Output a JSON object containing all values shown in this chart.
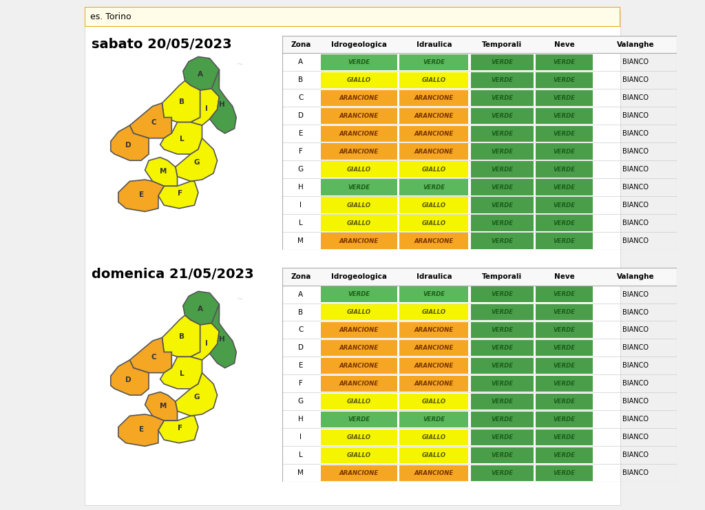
{
  "header_text": "es. Torino",
  "header_bg": "#fffde7",
  "header_border": "#e6a817",
  "title1": "sabato 20/05/2023",
  "title2": "domenica 21/05/2023",
  "columns": [
    "Zona",
    "Idrogeologica",
    "Idraulica",
    "Temporali",
    "Neve",
    "Valanghe"
  ],
  "table1": [
    [
      "A",
      "VERDE",
      "VERDE",
      "VERDE",
      "VERDE",
      "BIANCO"
    ],
    [
      "B",
      "GIALLO",
      "GIALLO",
      "VERDE",
      "VERDE",
      "BIANCO"
    ],
    [
      "C",
      "ARANCIONE",
      "ARANCIONE",
      "VERDE",
      "VERDE",
      "BIANCO"
    ],
    [
      "D",
      "ARANCIONE",
      "ARANCIONE",
      "VERDE",
      "VERDE",
      "BIANCO"
    ],
    [
      "E",
      "ARANCIONE",
      "ARANCIONE",
      "VERDE",
      "VERDE",
      "BIANCO"
    ],
    [
      "F",
      "ARANCIONE",
      "ARANCIONE",
      "VERDE",
      "VERDE",
      "BIANCO"
    ],
    [
      "G",
      "GIALLO",
      "GIALLO",
      "VERDE",
      "VERDE",
      "BIANCO"
    ],
    [
      "H",
      "VERDE",
      "VERDE",
      "VERDE",
      "VERDE",
      "BIANCO"
    ],
    [
      "I",
      "GIALLO",
      "GIALLO",
      "VERDE",
      "VERDE",
      "BIANCO"
    ],
    [
      "L",
      "GIALLO",
      "GIALLO",
      "VERDE",
      "VERDE",
      "BIANCO"
    ],
    [
      "M",
      "ARANCIONE",
      "ARANCIONE",
      "VERDE",
      "VERDE",
      "BIANCO"
    ]
  ],
  "table2": [
    [
      "A",
      "VERDE",
      "VERDE",
      "VERDE",
      "VERDE",
      "BIANCO"
    ],
    [
      "B",
      "GIALLO",
      "GIALLO",
      "VERDE",
      "VERDE",
      "BIANCO"
    ],
    [
      "C",
      "ARANCIONE",
      "ARANCIONE",
      "VERDE",
      "VERDE",
      "BIANCO"
    ],
    [
      "D",
      "ARANCIONE",
      "ARANCIONE",
      "VERDE",
      "VERDE",
      "BIANCO"
    ],
    [
      "E",
      "ARANCIONE",
      "ARANCIONE",
      "VERDE",
      "VERDE",
      "BIANCO"
    ],
    [
      "F",
      "ARANCIONE",
      "ARANCIONE",
      "VERDE",
      "VERDE",
      "BIANCO"
    ],
    [
      "G",
      "GIALLO",
      "GIALLO",
      "VERDE",
      "VERDE",
      "BIANCO"
    ],
    [
      "H",
      "VERDE",
      "VERDE",
      "VERDE",
      "VERDE",
      "BIANCO"
    ],
    [
      "I",
      "GIALLO",
      "GIALLO",
      "VERDE",
      "VERDE",
      "BIANCO"
    ],
    [
      "L",
      "GIALLO",
      "GIALLO",
      "VERDE",
      "VERDE",
      "BIANCO"
    ],
    [
      "M",
      "ARANCIONE",
      "ARANCIONE",
      "VERDE",
      "VERDE",
      "BIANCO"
    ]
  ],
  "color_map": {
    "VERDE": "#5cb85c",
    "GIALLO": "#f5f500",
    "ARANCIONE": "#f5a623",
    "BIANCO": "#ffffff"
  },
  "neve_color": "#4a9e4a",
  "temporali_color": "#4a9e4a",
  "text_color_map": {
    "VERDE": "#1a5e1a",
    "GIALLO": "#5a5a00",
    "ARANCIONE": "#7a3300",
    "BIANCO": "#000000"
  },
  "bg_color": "#ffffff",
  "page_bg": "#f5f5f5",
  "map1_zones_colors": {
    "A": "#4a9e4a",
    "B": "#f5f500",
    "C": "#f5a623",
    "D": "#f5a623",
    "E": "#f5a623",
    "F": "#f5f500",
    "G": "#f5f500",
    "H": "#4a9e4a",
    "I": "#f5f500",
    "L": "#f5f500",
    "M": "#f5f500"
  },
  "map2_zones_colors": {
    "A": "#4a9e4a",
    "B": "#f5f500",
    "C": "#f5a623",
    "D": "#f5a623",
    "E": "#f5a623",
    "F": "#f5f500",
    "G": "#f5f500",
    "H": "#4a9e4a",
    "I": "#f5f500",
    "L": "#f5f500",
    "M": "#f5a623"
  }
}
